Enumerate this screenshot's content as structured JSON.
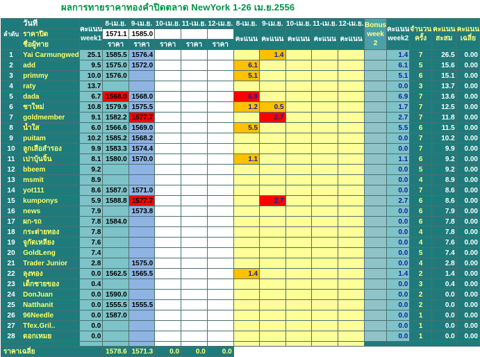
{
  "title": "ผลการทายราคาทองคำปิดตลาด NewYork 1-26 เม.ย.2556",
  "header": {
    "rank_label": "ลำดับ",
    "date_label": "วันที่",
    "close_label": "ราคาปิด",
    "player_label": "ชื่อผู้ทาย",
    "points_week1": "คะแนน week1",
    "dates": [
      "8-เม.ย.",
      "9-เม.ย.",
      "10-เม.ย.",
      "11-เม.ย.",
      "12-เม.ย."
    ],
    "closes": [
      "1571.1",
      "1585.0",
      "",
      "",
      ""
    ],
    "price_label": "ราคา",
    "score_dates": [
      "8-เม.ย.",
      "9-เม.ย.",
      "10-เม.ย.",
      "11-เม.ย.",
      "12-เม.ย."
    ],
    "score_label": "คะแนน",
    "bonus_label": "Bonus week 2",
    "points_week2": "คะแนน week2",
    "count_label": "จำนวนครั้ง",
    "total_label": "คะแนนสะสม",
    "avg_label": "คะแนนเฉลี่ย"
  },
  "rows": [
    {
      "n": "1",
      "name": "Yai Carmungwed",
      "w1": "25.1",
      "p": [
        "1585.5",
        "1576.4",
        "",
        "",
        ""
      ],
      "s": [
        "",
        "1.4",
        "",
        "",
        ""
      ],
      "w2": "1.4",
      "c": "7",
      "t": "26.5",
      "a": "0.00"
    },
    {
      "n": "2",
      "name": "add",
      "w1": "9.5",
      "p": [
        "1575.0",
        "1572.0",
        "",
        "",
        ""
      ],
      "s": [
        "6.1",
        "",
        "",
        "",
        ""
      ],
      "w2": "6.1",
      "c": "5",
      "t": "15.6",
      "a": "0.00"
    },
    {
      "n": "3",
      "name": "primmy",
      "w1": "10.0",
      "p": [
        "1576.0",
        "",
        "",
        "",
        ""
      ],
      "s": [
        "5.1",
        "",
        "",
        "",
        ""
      ],
      "w2": "5.1",
      "c": "6",
      "t": "15.1",
      "a": "0.00"
    },
    {
      "n": "4",
      "name": "raty",
      "w1": "13.7",
      "p": [
        "",
        "",
        "",
        "",
        ""
      ],
      "s": [
        "",
        "",
        "",
        "",
        ""
      ],
      "w2": "0.0",
      "c": "3",
      "t": "13.7",
      "a": "0.00"
    },
    {
      "n": "5",
      "name": "dada",
      "w1": "6.7",
      "p": [
        "1568.0",
        "1568.0",
        "",
        "",
        ""
      ],
      "s": [
        "6.9",
        "",
        "",
        "",
        ""
      ],
      "w2": "6.9",
      "c": "7",
      "t": "13.6",
      "a": "0.00"
    },
    {
      "n": "6",
      "name": "ชาใหม่",
      "w1": "10.8",
      "p": [
        "1579.9",
        "1575.5",
        "",
        "",
        ""
      ],
      "s": [
        "1.2",
        "0.5",
        "",
        "",
        ""
      ],
      "w2": "1.7",
      "c": "7",
      "t": "12.5",
      "a": "0.00"
    },
    {
      "n": "7",
      "name": "goldmember",
      "w1": "9.1",
      "p": [
        "1582.2",
        "1577.7",
        "",
        "",
        ""
      ],
      "s": [
        "",
        "2.7",
        "",
        "",
        ""
      ],
      "w2": "2.7",
      "c": "7",
      "t": "11.8",
      "a": "0.00"
    },
    {
      "n": "8",
      "name": "น้ำใส",
      "w1": "6.0",
      "p": [
        "1566.6",
        "1569.0",
        "",
        "",
        ""
      ],
      "s": [
        "5.5",
        "",
        "",
        "",
        ""
      ],
      "w2": "5.5",
      "c": "6",
      "t": "11.5",
      "a": "0.00"
    },
    {
      "n": "9",
      "name": "puitam",
      "w1": "10.2",
      "p": [
        "1585.2",
        "1568.2",
        "",
        "",
        ""
      ],
      "s": [
        "",
        "",
        "",
        "",
        ""
      ],
      "w2": "0.0",
      "c": "7",
      "t": "10.2",
      "a": "0.00"
    },
    {
      "n": "10",
      "name": "ลูกเสือสำรอง",
      "w1": "9.9",
      "p": [
        "1583.3",
        "1574.4",
        "",
        "",
        ""
      ],
      "s": [
        "",
        "",
        "",
        "",
        ""
      ],
      "w2": "0.0",
      "c": "7",
      "t": "9.9",
      "a": "0.00"
    },
    {
      "n": "11",
      "name": "เปาบุ้นจิ้น",
      "w1": "8.1",
      "p": [
        "1580.0",
        "1570.0",
        "",
        "",
        ""
      ],
      "s": [
        "1.1",
        "",
        "",
        "",
        ""
      ],
      "w2": "1.1",
      "c": "6",
      "t": "9.2",
      "a": "0.00"
    },
    {
      "n": "12",
      "name": "bbeem",
      "w1": "9.2",
      "p": [
        "",
        "",
        "",
        "",
        ""
      ],
      "s": [
        "",
        "",
        "",
        "",
        ""
      ],
      "w2": "0.0",
      "c": "5",
      "t": "9.2",
      "a": "0.00"
    },
    {
      "n": "13",
      "name": "msmit",
      "w1": "8.9",
      "p": [
        "",
        "",
        "",
        "",
        ""
      ],
      "s": [
        "",
        "",
        "",
        "",
        ""
      ],
      "w2": "0.0",
      "c": "4",
      "t": "8.9",
      "a": "0.00"
    },
    {
      "n": "14",
      "name": "yot111",
      "w1": "8.6",
      "p": [
        "1587.0",
        "1571.0",
        "",
        "",
        ""
      ],
      "s": [
        "",
        "",
        "",
        "",
        ""
      ],
      "w2": "0.0",
      "c": "7",
      "t": "8.6",
      "a": "0.00"
    },
    {
      "n": "15",
      "name": "kumponys",
      "w1": "5.9",
      "p": [
        "1588.8",
        "1577.7",
        "",
        "",
        ""
      ],
      "s": [
        "",
        "2.7",
        "",
        "",
        ""
      ],
      "w2": "2.7",
      "c": "6",
      "t": "8.6",
      "a": "0.00"
    },
    {
      "n": "16",
      "name": "news",
      "w1": "7.9",
      "p": [
        "",
        "1573.8",
        "",
        "",
        ""
      ],
      "s": [
        "",
        "",
        "",
        "",
        ""
      ],
      "w2": "0.0",
      "c": "6",
      "t": "7.9",
      "a": "0.00"
    },
    {
      "n": "17",
      "name": "ผก-รถ",
      "w1": "7.8",
      "p": [
        "1584.0",
        "",
        "",
        "",
        ""
      ],
      "s": [
        "",
        "",
        "",
        "",
        ""
      ],
      "w2": "0.0",
      "c": "6",
      "t": "7.8",
      "a": "0.00"
    },
    {
      "n": "18",
      "name": "กระต่ายทอง",
      "w1": "7.8",
      "p": [
        "",
        "",
        "",
        "",
        ""
      ],
      "s": [
        "",
        "",
        "",
        "",
        ""
      ],
      "w2": "0.0",
      "c": "4",
      "t": "7.8",
      "a": "0.00"
    },
    {
      "n": "19",
      "name": "จูกัดเหลียง",
      "w1": "7.6",
      "p": [
        "",
        "",
        "",
        "",
        ""
      ],
      "s": [
        "",
        "",
        "",
        "",
        ""
      ],
      "w2": "0.0",
      "c": "4",
      "t": "7.6",
      "a": "0.00"
    },
    {
      "n": "20",
      "name": "GoldLeng",
      "w1": "7.4",
      "p": [
        "",
        "",
        "",
        "",
        ""
      ],
      "s": [
        "",
        "",
        "",
        "",
        ""
      ],
      "w2": "0.0",
      "c": "5",
      "t": "7.4",
      "a": "0.00"
    },
    {
      "n": "21",
      "name": "Trader Junior",
      "w1": "2.8",
      "p": [
        "",
        "1575.0",
        "",
        "",
        ""
      ],
      "s": [
        "",
        "",
        "",
        "",
        ""
      ],
      "w2": "0.0",
      "c": "4",
      "t": "2.8",
      "a": "0.00"
    },
    {
      "n": "22",
      "name": "ลุงทอง",
      "w1": "0.0",
      "p": [
        "1562.5",
        "1565.5",
        "",
        "",
        ""
      ],
      "s": [
        "1.4",
        "",
        "",
        "",
        ""
      ],
      "w2": "1.4",
      "c": "2",
      "t": "1.4",
      "a": "0.00"
    },
    {
      "n": "23",
      "name": "เด็กชายของ",
      "w1": "0.4",
      "p": [
        "",
        "",
        "",
        "",
        ""
      ],
      "s": [
        "",
        "",
        "",
        "",
        ""
      ],
      "w2": "0.0",
      "c": "3",
      "t": "0.4",
      "a": "0.00"
    },
    {
      "n": "24",
      "name": "DonJuan",
      "w1": "0.0",
      "p": [
        "1590.0",
        "",
        "",
        "",
        ""
      ],
      "s": [
        "",
        "",
        "",
        "",
        ""
      ],
      "w2": "0.0",
      "c": "2",
      "t": "0.0",
      "a": "0.00"
    },
    {
      "n": "25",
      "name": "Natthanit",
      "w1": "0.0",
      "p": [
        "1555.5",
        "1555.5",
        "",
        "",
        ""
      ],
      "s": [
        "",
        "",
        "",
        "",
        ""
      ],
      "w2": "0.0",
      "c": "2",
      "t": "0.0",
      "a": "0.00"
    },
    {
      "n": "26",
      "name": "96Needle",
      "w1": "0.0",
      "p": [
        "1587.0",
        "",
        "",
        "",
        ""
      ],
      "s": [
        "",
        "",
        "",
        "",
        ""
      ],
      "w2": "0.0",
      "c": "1",
      "t": "0.0",
      "a": "0.00"
    },
    {
      "n": "27",
      "name": "Tfex.Gril..",
      "w1": "0.0",
      "p": [
        "",
        "",
        "",
        "",
        ""
      ],
      "s": [
        "",
        "",
        "",
        "",
        ""
      ],
      "w2": "0.0",
      "c": "1",
      "t": "0.0",
      "a": "0.00"
    },
    {
      "n": "28",
      "name": "ดอกเหมย",
      "w1": "0.0",
      "p": [
        "",
        "",
        "",
        "",
        ""
      ],
      "s": [
        "",
        "",
        "",
        "",
        ""
      ],
      "w2": "0.0",
      "c": "1",
      "t": "0.0",
      "a": "0.00"
    }
  ],
  "highlights": {
    "price_red": [
      [
        4,
        0
      ],
      [
        6,
        1
      ],
      [
        14,
        1
      ]
    ],
    "score_orange": [
      [
        0,
        1
      ],
      [
        1,
        0
      ],
      [
        2,
        0
      ],
      [
        5,
        0
      ],
      [
        5,
        1
      ],
      [
        7,
        0
      ],
      [
        10,
        0
      ],
      [
        21,
        0
      ]
    ],
    "score_red": [
      [
        4,
        0
      ],
      [
        6,
        1
      ],
      [
        14,
        1
      ]
    ]
  },
  "footer": {
    "label": "ราคาเฉลี่ย",
    "values": [
      "1578.6",
      "1571.3",
      "0.0",
      "0.0",
      "0.0"
    ]
  },
  "colors": {
    "title_green": "#009245",
    "teal": "#1f7b7b",
    "light_teal": "#7dc3c8",
    "blue_price": "#8fb4e3",
    "score_yellow": "#ffff99",
    "highlight_orange": "#ffc000",
    "highlight_red": "#ff0000"
  }
}
